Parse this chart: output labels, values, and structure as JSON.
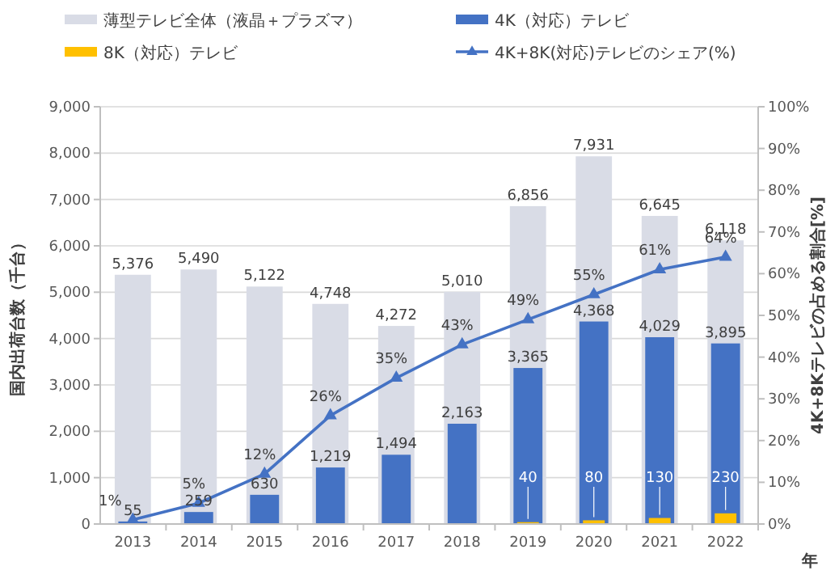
{
  "chart_data": {
    "type": "bar",
    "categories": [
      "2013",
      "2014",
      "2015",
      "2016",
      "2017",
      "2018",
      "2019",
      "2020",
      "2021",
      "2022"
    ],
    "series": [
      {
        "name": "薄型テレビ全体（液晶＋プラズマ）",
        "color": "#d9dce6",
        "values": [
          5376,
          5490,
          5122,
          4748,
          4272,
          5010,
          6856,
          7931,
          6645,
          6118
        ],
        "value_labels": [
          "5,376",
          "5,490",
          "5,122",
          "4,748",
          "4,272",
          "5,010",
          "6,856",
          "7,931",
          "6,645",
          "6,118"
        ]
      },
      {
        "name": "4K（対応）テレビ",
        "color": "#4472c4",
        "values": [
          55,
          259,
          630,
          1219,
          1494,
          2163,
          3365,
          4368,
          4029,
          3895
        ],
        "value_labels": [
          "55",
          "259",
          "630",
          "1,219",
          "1,494",
          "2,163",
          "3,365",
          "4,368",
          "4,029",
          "3,895"
        ]
      },
      {
        "name": "8K（対応）テレビ",
        "color": "#ffc000",
        "values": [
          null,
          null,
          null,
          null,
          null,
          null,
          40,
          80,
          130,
          230
        ],
        "value_labels": [
          null,
          null,
          null,
          null,
          null,
          null,
          "40",
          "80",
          "130",
          "230"
        ]
      },
      {
        "name": "4K+8K(対応)テレビのシェア(%)",
        "type": "line",
        "axis": "y2",
        "color": "#4472c4",
        "marker": "triangle",
        "values": [
          1,
          5,
          12,
          26,
          35,
          43,
          49,
          55,
          61,
          64
        ],
        "value_labels": [
          "1%",
          "5%",
          "12%",
          "26%",
          "35%",
          "43%",
          "49%",
          "55%",
          "61%",
          "64%"
        ]
      }
    ],
    "xlabel": "年",
    "ylabel": "国内出荷台数（千台）",
    "y2label": "4K+8Kテレビの占める割合[%]",
    "ylim": [
      0,
      9000
    ],
    "yticks": [
      {
        "value": 0,
        "label": "0"
      },
      {
        "value": 1000,
        "label": "1,000"
      },
      {
        "value": 2000,
        "label": "2,000"
      },
      {
        "value": 3000,
        "label": "3,000"
      },
      {
        "value": 4000,
        "label": "4,000"
      },
      {
        "value": 5000,
        "label": "5,000"
      },
      {
        "value": 6000,
        "label": "6,000"
      },
      {
        "value": 7000,
        "label": "7,000"
      },
      {
        "value": 8000,
        "label": "8,000"
      },
      {
        "value": 9000,
        "label": "9,000"
      }
    ],
    "y2lim": [
      0,
      100
    ],
    "y2ticks": [
      {
        "value": 0,
        "label": "0%"
      },
      {
        "value": 10,
        "label": "10%"
      },
      {
        "value": 20,
        "label": "20%"
      },
      {
        "value": 30,
        "label": "30%"
      },
      {
        "value": 40,
        "label": "40%"
      },
      {
        "value": 50,
        "label": "50%"
      },
      {
        "value": 60,
        "label": "60%"
      },
      {
        "value": 70,
        "label": "70%"
      },
      {
        "value": 80,
        "label": "80%"
      },
      {
        "value": 90,
        "label": "90%"
      },
      {
        "value": 100,
        "label": "100%"
      }
    ],
    "grid": "y",
    "legend": "top"
  }
}
